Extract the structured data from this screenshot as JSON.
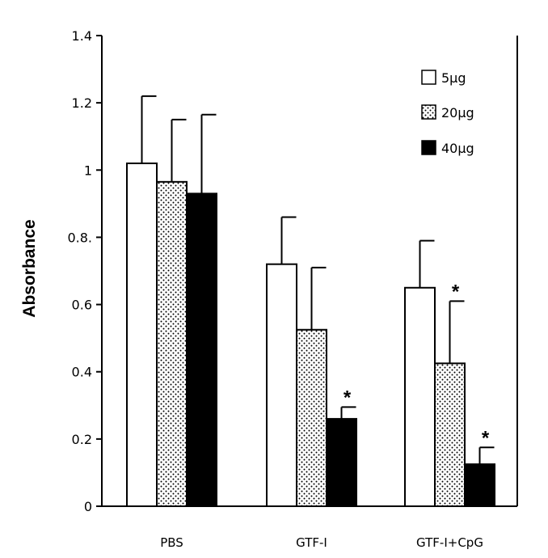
{
  "chart_data": {
    "type": "bar",
    "title": "",
    "xlabel": "",
    "ylabel": "Absorbance",
    "ylim": [
      0,
      1.4
    ],
    "yticks": [
      0,
      0.2,
      0.4,
      0.6,
      0.8,
      1,
      1.2,
      1.4
    ],
    "ytick_labels": [
      "0",
      "0.2",
      "0.4",
      "0.6",
      "0.8.",
      "1",
      "1.2",
      "1.4"
    ],
    "categories": [
      "PBS",
      "GTF-I",
      "GTF-I+CpG"
    ],
    "series": [
      {
        "name": "5μg",
        "fill": "white",
        "values": [
          1.02,
          0.72,
          0.65
        ],
        "errors": [
          0.2,
          0.14,
          0.14
        ]
      },
      {
        "name": "20μg",
        "fill": "dotted",
        "values": [
          0.965,
          0.525,
          0.425
        ],
        "errors": [
          0.185,
          0.185,
          0.185
        ]
      },
      {
        "name": "40μg",
        "fill": "black",
        "values": [
          0.93,
          0.26,
          0.125
        ],
        "errors": [
          0.235,
          0.035,
          0.05
        ]
      }
    ],
    "significance": [
      {
        "category": "GTF-I",
        "series": "40μg",
        "label": "*"
      },
      {
        "category": "GTF-I+CpG",
        "series": "20μg",
        "label": "*"
      },
      {
        "category": "GTF-I+CpG",
        "series": "40μg",
        "label": "*"
      }
    ],
    "grid": false,
    "legend_position": "top-right"
  },
  "colors": {
    "bar_outline": "#000000",
    "solid_fill": "#000000",
    "background": "#ffffff"
  }
}
